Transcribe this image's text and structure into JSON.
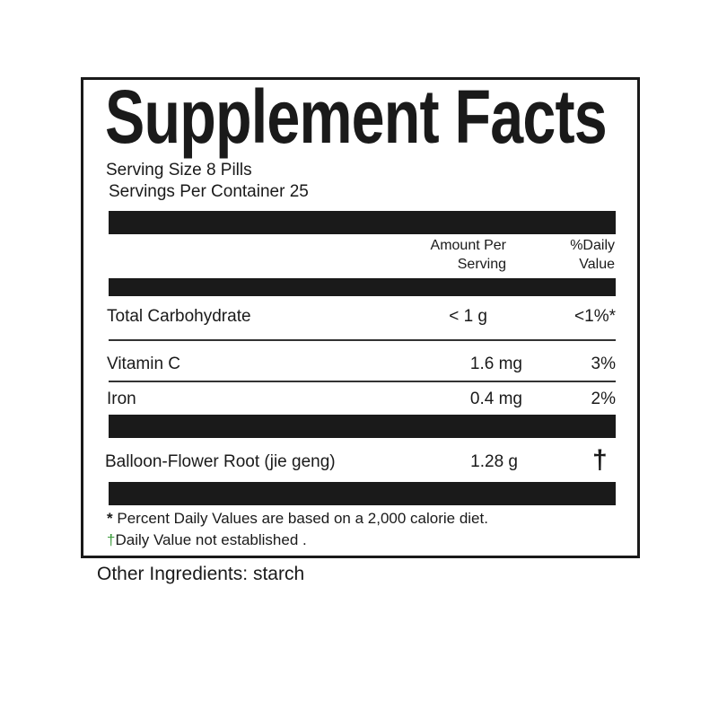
{
  "title": "Supplement Facts",
  "serving_size": "Serving Size 8 Pills",
  "servings_per_container": "Servings Per  Container 25",
  "headers": {
    "amount_line1": "Amount Per",
    "amount_line2": "Serving",
    "dv_line1": "%Daily",
    "dv_line2": "Value"
  },
  "rows": [
    {
      "name": "Total Carbohydrate",
      "amount": "< 1 g",
      "dv": "<1%*"
    },
    {
      "name": "Vitamin C",
      "amount": "1.6 mg",
      "dv": "3%"
    },
    {
      "name": "Iron",
      "amount": "0.4 mg",
      "dv": "2%"
    },
    {
      "name": "Balloon-Flower Root (jie geng)",
      "amount": "1.28 g",
      "dv": "†"
    }
  ],
  "footnotes": {
    "asterisk_symbol": "*",
    "asterisk_text": "Percent Daily Values are based on a  2,000 calorie diet.",
    "dagger_symbol": "†",
    "dagger_text": "Daily Value not established ."
  },
  "other_ingredients": {
    "label": "Other Ingredients:",
    "value": "starch"
  },
  "colors": {
    "dagger_green": "#3a9a3a",
    "ink": "#1a1a1a"
  }
}
